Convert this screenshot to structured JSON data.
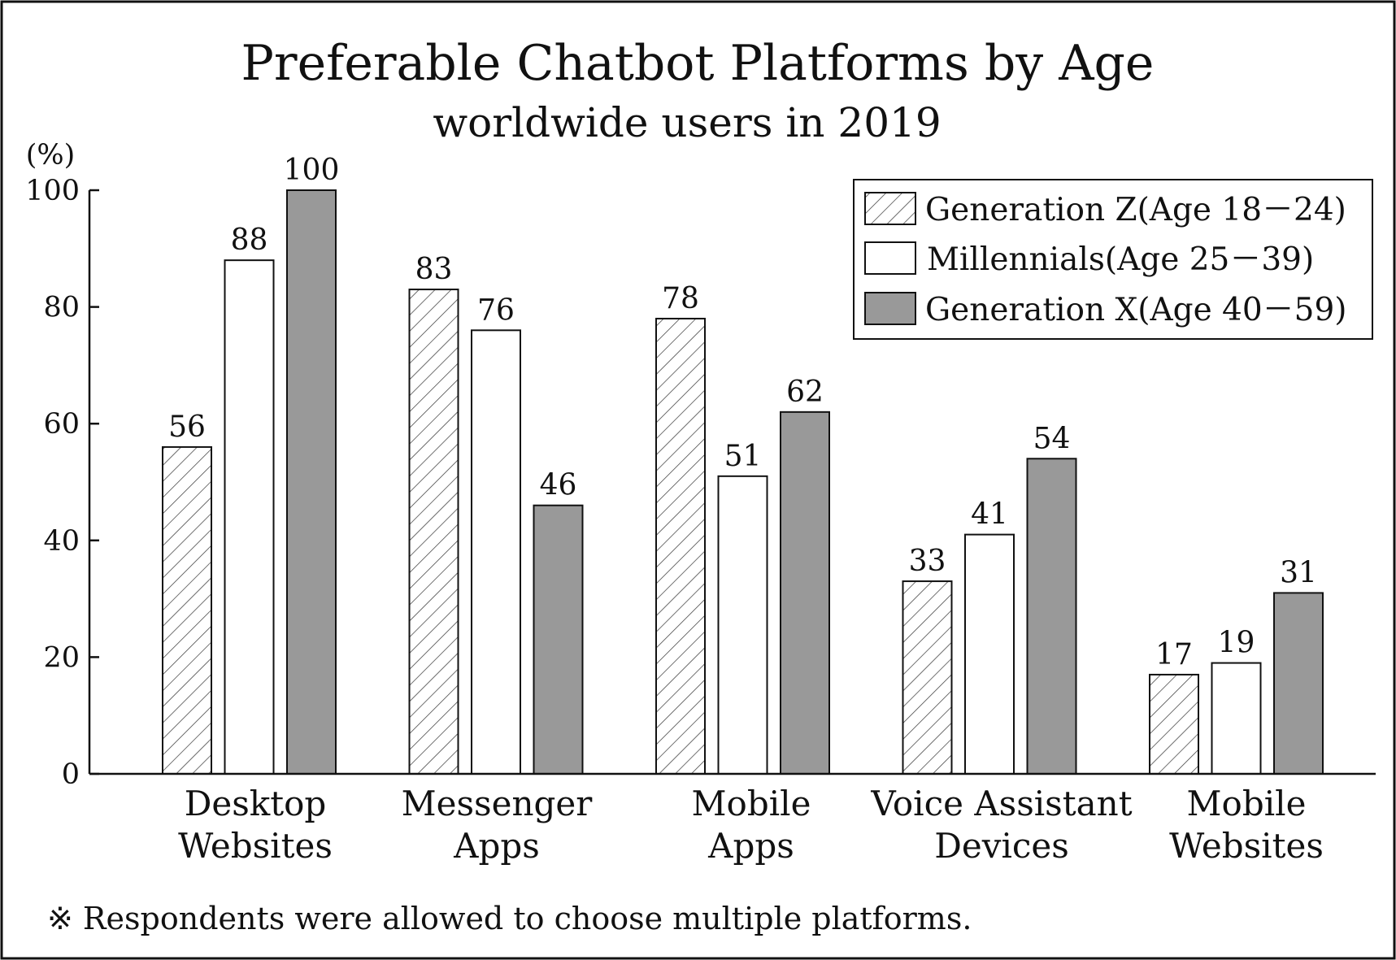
{
  "chart_data": {
    "type": "bar",
    "title": "Preferable Chatbot Platforms by Age",
    "subtitle": "worldwide users in 2019",
    "ylabel": "(%)",
    "xlabel": "",
    "ylim": [
      0,
      100
    ],
    "yticks": [
      0,
      20,
      40,
      60,
      80,
      100
    ],
    "grid": false,
    "legend_position": "top-right",
    "categories": [
      [
        "Desktop",
        "Websites"
      ],
      [
        "Messenger",
        "Apps"
      ],
      [
        "Mobile",
        "Apps"
      ],
      [
        "Voice Assistant",
        "Devices"
      ],
      [
        "Mobile",
        "Websites"
      ]
    ],
    "series": [
      {
        "name": "Generation Z(Age 18－24)",
        "style": "hatched",
        "color": "#ffffff",
        "values": [
          56,
          83,
          78,
          33,
          17
        ]
      },
      {
        "name": "Millennials(Age 25－39)",
        "style": "solid",
        "color": "#ffffff",
        "values": [
          88,
          76,
          51,
          41,
          19
        ]
      },
      {
        "name": "Generation X(Age 40－59)",
        "style": "solid",
        "color": "#999999",
        "values": [
          100,
          46,
          62,
          54,
          31
        ]
      }
    ],
    "note": "※ Respondents were allowed to choose multiple platforms."
  }
}
